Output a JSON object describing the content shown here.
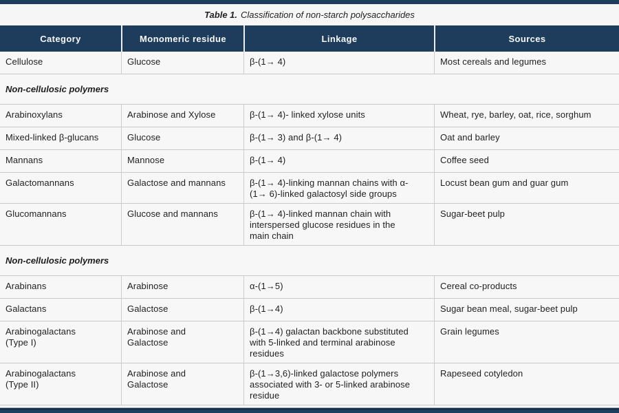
{
  "colors": {
    "navy": "#1e3d5c",
    "row_background": "#f7f7f7",
    "border_gray": "#c9c9c9",
    "header_text": "#f7f8f9"
  },
  "caption": {
    "prefix": "Table 1.",
    "text": "Classification of non-starch polysaccharides"
  },
  "table": {
    "columns": [
      "Category",
      "Monomeric residue",
      "Linkage",
      "Sources"
    ],
    "rows": [
      {
        "type": "data",
        "cells": [
          "Cellulose",
          "Glucose",
          "β-(1→ 4)",
          "Most cereals and legumes"
        ]
      },
      {
        "type": "section",
        "label": "Non-cellulosic polymers"
      },
      {
        "type": "data",
        "cells": [
          "Arabinoxylans",
          "Arabinose and Xylose",
          "β-(1→ 4)- linked xylose units",
          "Wheat, rye, barley, oat, rice, sorghum"
        ]
      },
      {
        "type": "data",
        "cells": [
          "Mixed-linked β-glucans",
          "Glucose",
          "β-(1→ 3) and β-(1→ 4)",
          "Oat and barley"
        ]
      },
      {
        "type": "data",
        "cells": [
          "Mannans",
          "Mannose",
          "β-(1→ 4)",
          "Coffee seed"
        ]
      },
      {
        "type": "data",
        "cells": [
          "Galactomannans",
          "Galactose and mannans",
          "β-(1→ 4)-linking mannan chains with α-(1→ 6)-linked galactosyl side groups",
          "Locust bean gum and guar gum"
        ]
      },
      {
        "type": "data",
        "cells": [
          "Glucomannans",
          "Glucose and mannans",
          "β-(1→ 4)-linked mannan chain with interspersed glucose residues in the main chain",
          "Sugar-beet pulp"
        ]
      },
      {
        "type": "section",
        "label": "Non-cellulosic polymers"
      },
      {
        "type": "data",
        "cells": [
          "Arabinans",
          "Arabinose",
          "α-(1→5)",
          "Cereal co-products"
        ]
      },
      {
        "type": "data",
        "cells": [
          "Galactans",
          "Galactose",
          "β-(1→4)",
          "Sugar bean meal, sugar-beet pulp"
        ]
      },
      {
        "type": "data",
        "cells": [
          "Arabinogalactans\n(Type I)",
          "Arabinose and\nGalactose",
          "β-(1→4) galactan backbone substituted with 5-linked and terminal arabinose residues",
          "Grain legumes"
        ]
      },
      {
        "type": "data",
        "cells": [
          "Arabinogalactans\n(Type II)",
          "Arabinose and\nGalactose",
          "β-(1→3,6)-linked galactose polymers associated with 3- or 5-linked arabinose residue",
          "Rapeseed cotyledon"
        ]
      }
    ]
  }
}
